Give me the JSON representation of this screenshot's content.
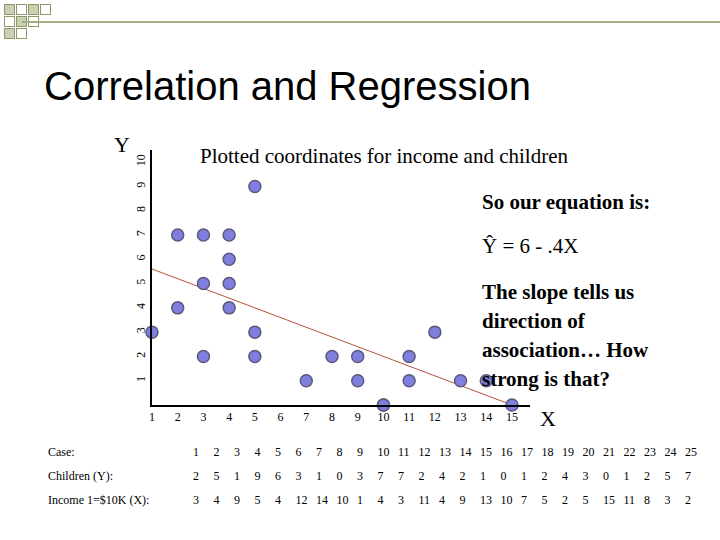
{
  "slide": {
    "title": "Correlation and Regression"
  },
  "chart_data": {
    "type": "scatter",
    "title": "Plotted coordinates for income and children",
    "x_label": "X",
    "y_label": "Y",
    "x": [
      3,
      4,
      9,
      5,
      4,
      12,
      14,
      10,
      1,
      4,
      3,
      11,
      4,
      9,
      13,
      10,
      7,
      5,
      2,
      5,
      15,
      11,
      8,
      3,
      2
    ],
    "values": [
      2,
      5,
      1,
      9,
      6,
      3,
      1,
      0,
      3,
      7,
      7,
      2,
      4,
      2,
      1,
      0,
      1,
      2,
      4,
      3,
      0,
      1,
      2,
      5,
      7
    ],
    "xlim": [
      1,
      15.7
    ],
    "ylim": [
      0,
      10.5
    ],
    "xticks": [
      1,
      2,
      3,
      4,
      5,
      6,
      7,
      8,
      9,
      10,
      11,
      12,
      13,
      14,
      15
    ],
    "yticks": [
      1,
      2,
      3,
      4,
      5,
      6,
      7,
      8,
      9,
      10
    ],
    "color": "#7f7fdf",
    "marker": "circle",
    "grid": false,
    "trend_line": {
      "intercept": 6,
      "slope": -0.4,
      "color": "#b5533c"
    }
  },
  "notes": {
    "heading": "So our equation is:",
    "equation": "Ŷ = 6 - .4X",
    "question": "The slope tells us direction of association… How strong is that?"
  },
  "table": {
    "rows": [
      {
        "label": "Case:",
        "values": [
          1,
          2,
          3,
          4,
          5,
          6,
          7,
          8,
          9,
          10,
          11,
          12,
          13,
          14,
          15,
          16,
          17,
          18,
          19,
          20,
          21,
          22,
          23,
          24,
          25
        ]
      },
      {
        "label": "Children (Y):",
        "values": [
          2,
          5,
          1,
          9,
          6,
          3,
          1,
          0,
          3,
          7,
          7,
          2,
          4,
          2,
          1,
          0,
          1,
          2,
          4,
          3,
          0,
          1,
          2,
          5,
          7
        ]
      },
      {
        "label": "Income 1=$10K (X):",
        "values": [
          3,
          4,
          9,
          5,
          4,
          12,
          14,
          10,
          1,
          4,
          3,
          11,
          4,
          9,
          13,
          10,
          7,
          5,
          2,
          5,
          15,
          11,
          8,
          3,
          2
        ]
      }
    ]
  }
}
